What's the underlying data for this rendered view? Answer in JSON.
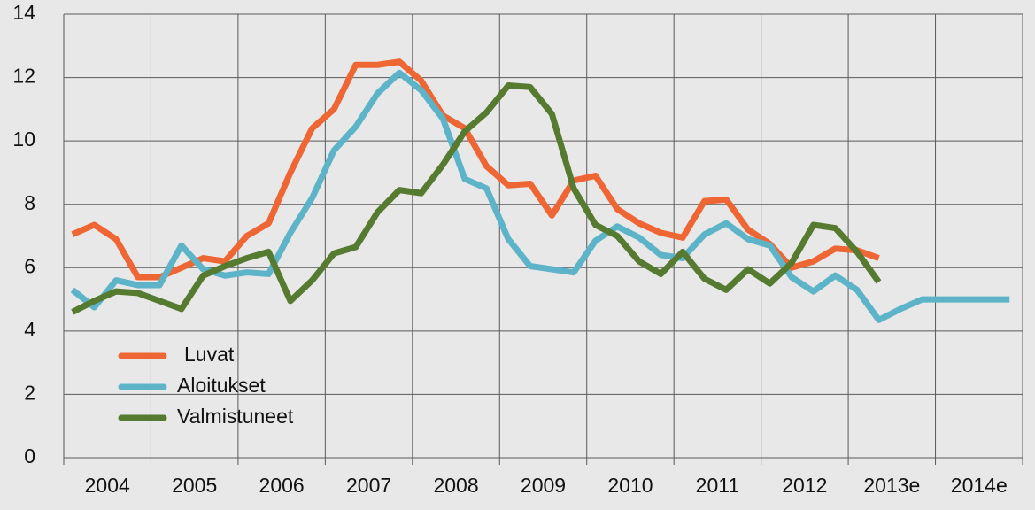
{
  "chart_data": {
    "type": "line",
    "categories": [
      null,
      "2004",
      null,
      null,
      null,
      "2005",
      null,
      null,
      null,
      "2006",
      null,
      null,
      null,
      "2007",
      null,
      null,
      null,
      "2008",
      null,
      null,
      null,
      "2009",
      null,
      null,
      null,
      "2010",
      null,
      null,
      null,
      "2011",
      null,
      null,
      null,
      "2012",
      null,
      null,
      null,
      "2013e",
      null,
      null,
      null,
      "2014e",
      null,
      null
    ],
    "series": [
      {
        "name": "Luvat",
        "color": "#ee6633",
        "values": [
          7.05,
          7.35,
          6.9,
          5.7,
          5.7,
          6.0,
          6.3,
          6.2,
          7.0,
          7.4,
          9.0,
          10.4,
          11.0,
          12.4,
          12.4,
          12.5,
          11.9,
          10.8,
          10.4,
          9.2,
          8.6,
          8.65,
          7.65,
          8.75,
          8.9,
          7.85,
          7.4,
          7.1,
          6.95,
          8.1,
          8.15,
          7.2,
          6.75,
          6.0,
          6.2,
          6.6,
          6.55,
          6.3,
          null,
          null,
          null,
          null,
          null,
          null
        ]
      },
      {
        "name": "Aloitukset",
        "color": "#5db4c8",
        "values": [
          5.3,
          4.75,
          5.6,
          5.45,
          5.45,
          6.7,
          5.95,
          5.75,
          5.85,
          5.8,
          7.1,
          8.2,
          9.7,
          10.45,
          11.5,
          12.15,
          11.6,
          10.7,
          8.8,
          8.5,
          6.9,
          6.05,
          5.95,
          5.85,
          6.85,
          7.3,
          6.95,
          6.4,
          6.3,
          7.05,
          7.4,
          6.9,
          6.7,
          5.7,
          5.25,
          5.75,
          5.3,
          4.35,
          4.7,
          5.0,
          5.0,
          5.0,
          5.0,
          5.0
        ]
      },
      {
        "name": "Valmistuneet",
        "color": "#557a30",
        "values": [
          4.6,
          4.95,
          5.25,
          5.2,
          4.95,
          4.7,
          5.75,
          6.05,
          6.3,
          6.5,
          4.95,
          5.6,
          6.45,
          6.65,
          7.75,
          8.45,
          8.35,
          9.25,
          10.3,
          10.9,
          11.75,
          11.7,
          10.85,
          8.5,
          7.35,
          7.0,
          6.2,
          5.8,
          6.5,
          5.65,
          5.3,
          5.95,
          5.5,
          6.15,
          7.35,
          7.25,
          6.5,
          5.55,
          null,
          null,
          null,
          null,
          null,
          null
        ]
      }
    ],
    "ylim": [
      0,
      14
    ],
    "yticks": [
      0,
      2,
      4,
      6,
      8,
      10,
      12,
      14
    ],
    "grid": true,
    "legend": "lower left"
  }
}
